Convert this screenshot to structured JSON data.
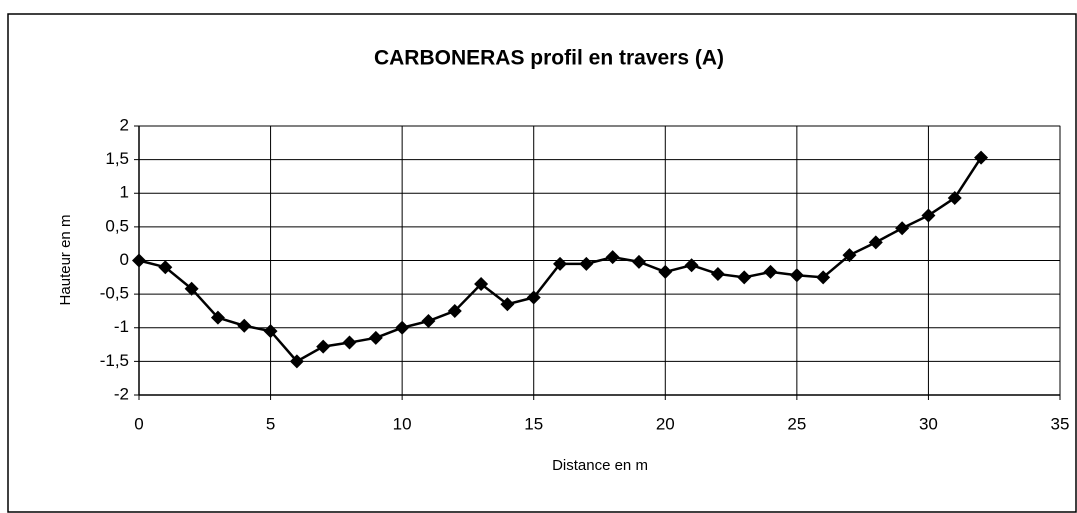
{
  "chart_data": {
    "type": "line",
    "title": "CARBONERAS profil en travers (A)",
    "x_label": "Distance en m",
    "y_label": "Hauteur en m",
    "x": [
      0,
      1,
      2,
      3,
      4,
      5,
      6,
      7,
      8,
      9,
      10,
      11,
      12,
      13,
      14,
      15,
      16,
      17,
      18,
      19,
      20,
      21,
      22,
      23,
      24,
      25,
      26,
      27,
      28,
      29,
      30,
      31,
      32
    ],
    "series": [
      {
        "color": "#000000",
        "values": [
          0,
          -0.1,
          -0.42,
          -0.85,
          -0.97,
          -1.05,
          -1.5,
          -1.28,
          -1.22,
          -1.15,
          -1.0,
          -0.9,
          -0.75,
          -0.35,
          -0.65,
          -0.55,
          -0.05,
          -0.05,
          0.05,
          -0.02,
          -0.17,
          -0.07,
          -0.2,
          -0.25,
          -0.17,
          -0.22,
          -0.25,
          0.08,
          0.27,
          0.48,
          0.67,
          0.93,
          1.53
        ]
      }
    ],
    "xlim": [
      0,
      35
    ],
    "xticks": [
      0,
      5,
      10,
      15,
      20,
      25,
      30,
      35
    ],
    "ylim": [
      -2,
      2
    ],
    "yticks": [
      -2,
      {
        "value": -1.5,
        "label": "-1,5"
      },
      -1,
      {
        "value": -0.5,
        "label": "-0,5"
      },
      0,
      {
        "value": 0.5,
        "label": "0,5"
      },
      1,
      {
        "value": 1.5,
        "label": "1,5"
      },
      2
    ],
    "grid": true
  }
}
